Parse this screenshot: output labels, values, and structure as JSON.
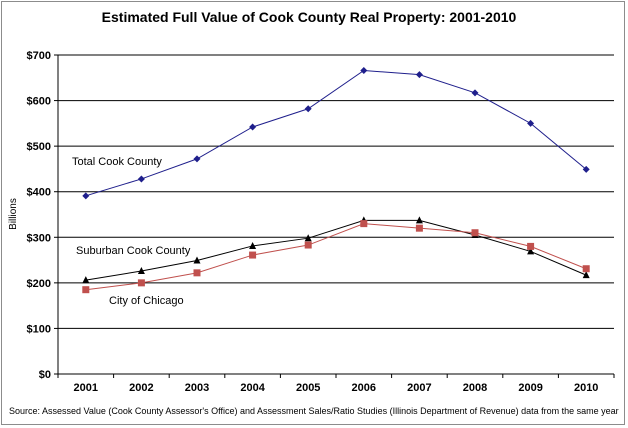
{
  "chart_data": {
    "type": "line",
    "title": "Estimated Full Value of Cook County Real Property: 2001-2010",
    "ylabel": "Billions",
    "xlabel": "",
    "x": [
      "2001",
      "2002",
      "2003",
      "2004",
      "2005",
      "2006",
      "2007",
      "2008",
      "2009",
      "2010"
    ],
    "ylim": [
      0,
      700
    ],
    "yticks": [
      "$0",
      "$100",
      "$200",
      "$300",
      "$400",
      "$500",
      "$600",
      "$700"
    ],
    "ytick_values": [
      0,
      100,
      200,
      300,
      400,
      500,
      600,
      700
    ],
    "grid": true,
    "series": [
      {
        "name": "Total Cook County",
        "color": "#1f1f8c",
        "marker": "diamond",
        "values": [
          391,
          428,
          472,
          542,
          582,
          666,
          657,
          617,
          550,
          449
        ]
      },
      {
        "name": "Suburban Cook County",
        "color": "#000000",
        "marker": "triangle",
        "values": [
          206,
          226,
          249,
          281,
          298,
          337,
          337,
          305,
          269,
          217
        ]
      },
      {
        "name": "City of Chicago",
        "color": "#c0504d",
        "marker": "square",
        "values": [
          185,
          200,
          222,
          261,
          283,
          330,
          320,
          310,
          280,
          231
        ]
      }
    ],
    "source": "Source: Assessed Value (Cook County Assessor's Office) and Assessment Sales/Ratio Studies (Illinois Department of Revenue) data from the same year"
  }
}
